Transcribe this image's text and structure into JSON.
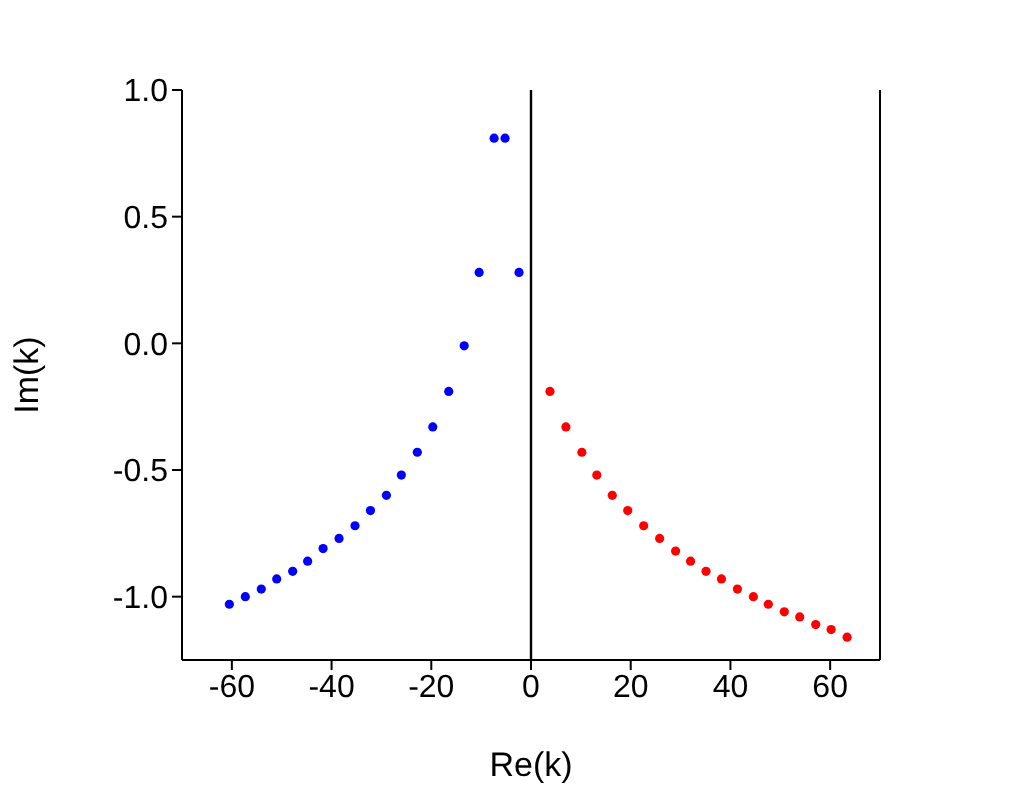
{
  "chart_data": {
    "type": "scatter",
    "xlabel": "Re(k)",
    "ylabel": "Im(k)",
    "xlim": [
      -70,
      70
    ],
    "xticks": [
      -60,
      -40,
      -20,
      0,
      20,
      40,
      60
    ],
    "ylim": [
      -1.25,
      1.0
    ],
    "yticks": [
      {
        "value": -1.0,
        "label": "-1.0"
      },
      {
        "value": -0.5,
        "label": "-0.5"
      },
      {
        "value": 0.0,
        "label": "0.0"
      },
      {
        "value": 0.5,
        "label": "0.5"
      },
      {
        "value": 1.0,
        "label": "1.0"
      }
    ],
    "grid": false,
    "legend": false,
    "marker": "circle",
    "ref_lines": [
      {
        "axis": "x",
        "value": 0,
        "color": "#000000"
      }
    ],
    "series": [
      {
        "color": "#0000ff",
        "x": [
          -60.5,
          -57.3,
          -54.1,
          -51.0,
          -47.8,
          -44.8,
          -41.7,
          -38.5,
          -35.3,
          -32.2,
          -29.0,
          -26.0,
          -22.8,
          -19.7,
          -16.5,
          -13.4,
          -10.4,
          -7.4,
          -5.2,
          -2.4
        ],
        "values": [
          -1.03,
          -1.0,
          -0.97,
          -0.93,
          -0.9,
          -0.86,
          -0.81,
          -0.77,
          -0.72,
          -0.66,
          -0.6,
          -0.52,
          -0.43,
          -0.33,
          -0.19,
          -0.01,
          0.28,
          0.81,
          0.81,
          0.28
        ]
      },
      {
        "color": "#ff0000",
        "x": [
          3.8,
          7.0,
          10.2,
          13.2,
          16.3,
          19.4,
          22.6,
          25.8,
          29.0,
          32.0,
          35.1,
          38.2,
          41.4,
          44.6,
          47.6,
          50.8,
          53.9,
          57.1,
          60.2,
          63.4
        ],
        "values": [
          -0.19,
          -0.33,
          -0.43,
          -0.52,
          -0.6,
          -0.66,
          -0.72,
          -0.77,
          -0.82,
          -0.86,
          -0.9,
          -0.93,
          -0.97,
          -1.0,
          -1.03,
          -1.06,
          -1.08,
          -1.11,
          -1.13,
          -1.16
        ]
      }
    ]
  }
}
